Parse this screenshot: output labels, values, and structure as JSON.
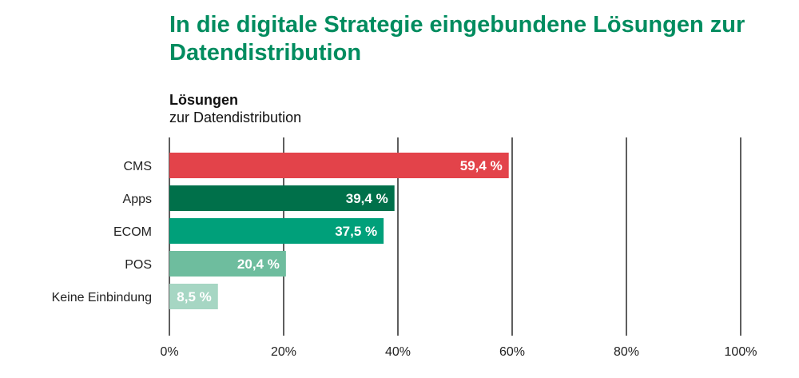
{
  "chart_data": {
    "type": "bar",
    "orientation": "horizontal",
    "title": "In die digitale Strategie eingebundene Lösungen zur Datendistribution",
    "legend_title": "Lösungen",
    "legend_subtitle": "zur Datendistribution",
    "categories": [
      "CMS",
      "Apps",
      "ECOM",
      "POS",
      "Keine Einbindung"
    ],
    "values": [
      59.4,
      39.4,
      37.5,
      20.4,
      8.5
    ],
    "value_labels": [
      "59,4 %",
      "39,4 %",
      "37,5 %",
      "20,4 %",
      "8,5 %"
    ],
    "colors": [
      "#e3434a",
      "#00704a",
      "#00a07a",
      "#6ebd9e",
      "#a6d6c3"
    ],
    "xlim": [
      0,
      100
    ],
    "ticks": [
      0,
      20,
      40,
      60,
      80,
      100
    ],
    "tick_labels": [
      "0%",
      "20%",
      "40%",
      "60%",
      "80%",
      "100%"
    ],
    "grid": true
  }
}
